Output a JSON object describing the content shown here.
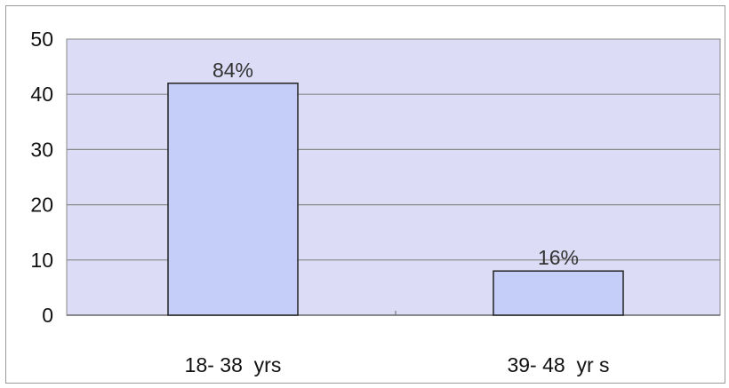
{
  "colors": {
    "plot_background": "#dcdcf6",
    "bar_fill": "#c5cdf9",
    "bar_stroke": "#222222",
    "gridline": "#8a8a8a",
    "axis": "#888888"
  },
  "chart_data": {
    "type": "bar",
    "categories": [
      "18- 38  yrs",
      "39- 48  yr s"
    ],
    "values": [
      42,
      8
    ],
    "data_labels": [
      "84%",
      "16%"
    ],
    "title": "",
    "xlabel": "",
    "ylabel": "",
    "ylim": [
      0,
      50
    ],
    "yticks": [
      0,
      10,
      20,
      30,
      40,
      50
    ],
    "grid": true,
    "legend": "none"
  }
}
